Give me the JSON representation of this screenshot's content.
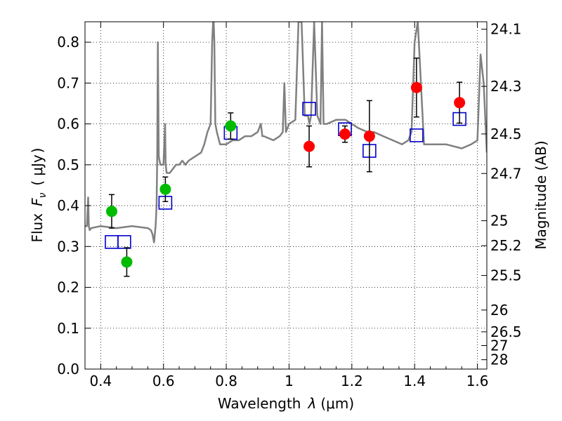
{
  "chart_data": {
    "type": "scatter",
    "xlabel_prefix": "Wavelength",
    "xlabel_symbol": "λ",
    "xlabel_unit": "(μm)",
    "ylabel_prefix": "Flux",
    "ylabel_symbol": "F",
    "ylabel_subscript": "ν",
    "ylabel_unit_open": "(",
    "ylabel_unit": "μJy",
    "ylabel_unit_close": ")",
    "y2label": "Magnitude (AB)",
    "xlim": [
      0.35,
      1.63
    ],
    "ylim": [
      0.0,
      0.85
    ],
    "grid": true,
    "x_ticks": [
      0.4,
      0.6,
      0.8,
      1.0,
      1.2,
      1.4,
      1.6
    ],
    "x_tick_labels": [
      "0.4",
      "0.6",
      "0.8",
      "1",
      "1.2",
      "1.4",
      "1.6"
    ],
    "y_ticks": [
      0.0,
      0.1,
      0.2,
      0.3,
      0.4,
      0.5,
      0.6,
      0.7,
      0.8
    ],
    "y_tick_labels": [
      "0.0",
      "0.1",
      "0.2",
      "0.3",
      "0.4",
      "0.5",
      "0.6",
      "0.7",
      "0.8"
    ],
    "mag_ticks": [
      "24.1",
      "24.3",
      "24.5",
      "24.7",
      "25",
      "25.2",
      "25.5",
      "26",
      "26.5",
      "27",
      "28"
    ],
    "colors": {
      "green": "#00bb00",
      "red": "#ff0000",
      "model_box": "#0000cc",
      "sed": "#808080",
      "errorbar": "#000000"
    },
    "series": [
      {
        "name": "green-points",
        "color": "green",
        "x": [
          0.435,
          0.483,
          0.606,
          0.814
        ],
        "y": [
          0.386,
          0.262,
          0.44,
          0.595
        ],
        "yerr_low": [
          0.041,
          0.035,
          0.03,
          0.032
        ],
        "yerr_high": [
          0.041,
          0.035,
          0.03,
          0.032
        ]
      },
      {
        "name": "red-points",
        "color": "red",
        "x": [
          1.064,
          1.178,
          1.256,
          1.406,
          1.543
        ],
        "y": [
          0.545,
          0.575,
          0.57,
          0.689,
          0.652
        ],
        "yerr_low": [
          0.05,
          0.02,
          0.087,
          0.072,
          0.05
        ],
        "yerr_high": [
          0.05,
          0.02,
          0.087,
          0.072,
          0.05
        ]
      },
      {
        "name": "model-photometry",
        "color": "model_box",
        "x": [
          0.435,
          0.475,
          0.606,
          0.814,
          1.064,
          1.178,
          1.256,
          1.406,
          1.543
        ],
        "y": [
          0.311,
          0.311,
          0.407,
          0.578,
          0.637,
          0.587,
          0.534,
          0.572,
          0.612
        ]
      }
    ],
    "sed_model": {
      "name": "model-spectrum",
      "color": "sed",
      "x": [
        0.35,
        0.356,
        0.36,
        0.362,
        0.365,
        0.37,
        0.4,
        0.45,
        0.5,
        0.55,
        0.56,
        0.565,
        0.57,
        0.575,
        0.578,
        0.58,
        0.582,
        0.585,
        0.59,
        0.6,
        0.605,
        0.607,
        0.61,
        0.62,
        0.63,
        0.64,
        0.65,
        0.66,
        0.67,
        0.68,
        0.7,
        0.72,
        0.73,
        0.74,
        0.75,
        0.755,
        0.758,
        0.76,
        0.762,
        0.765,
        0.77,
        0.78,
        0.8,
        0.82,
        0.84,
        0.86,
        0.88,
        0.9,
        0.91,
        0.915,
        0.92,
        0.95,
        0.97,
        0.98,
        0.985,
        0.99,
        1.0,
        1.02,
        1.03,
        1.04,
        1.05,
        1.06,
        1.065,
        1.07,
        1.08,
        1.09,
        1.1,
        1.105,
        1.11,
        1.12,
        1.15,
        1.18,
        1.2,
        1.22,
        1.25,
        1.27,
        1.3,
        1.33,
        1.36,
        1.38,
        1.39,
        1.4,
        1.41,
        1.43,
        1.45,
        1.5,
        1.55,
        1.58,
        1.6,
        1.61,
        1.62,
        1.63
      ],
      "y": [
        0.35,
        0.35,
        0.42,
        0.35,
        0.34,
        0.345,
        0.35,
        0.345,
        0.35,
        0.345,
        0.34,
        0.33,
        0.31,
        0.35,
        0.4,
        0.52,
        0.8,
        0.52,
        0.5,
        0.5,
        0.6,
        0.5,
        0.48,
        0.48,
        0.49,
        0.5,
        0.5,
        0.51,
        0.5,
        0.51,
        0.52,
        0.53,
        0.55,
        0.58,
        0.6,
        0.8,
        0.85,
        0.85,
        0.8,
        0.6,
        0.58,
        0.55,
        0.55,
        0.56,
        0.56,
        0.57,
        0.57,
        0.58,
        0.6,
        0.57,
        0.57,
        0.56,
        0.57,
        0.58,
        0.7,
        0.58,
        0.6,
        0.61,
        0.85,
        0.85,
        0.62,
        0.62,
        0.6,
        0.62,
        0.85,
        0.62,
        0.6,
        0.85,
        0.6,
        0.6,
        0.61,
        0.61,
        0.6,
        0.59,
        0.58,
        0.58,
        0.57,
        0.56,
        0.55,
        0.56,
        0.58,
        0.8,
        0.85,
        0.55,
        0.55,
        0.55,
        0.54,
        0.55,
        0.56,
        0.77,
        0.7,
        0.53
      ]
    }
  }
}
